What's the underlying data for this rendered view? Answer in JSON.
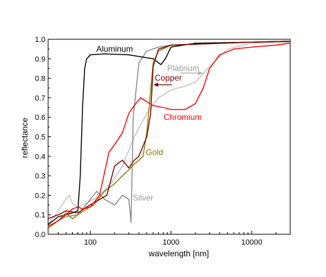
{
  "chart_data": {
    "type": "line",
    "xlabel": "wavelength [nm]",
    "ylabel": "reflectance",
    "xscale": "log",
    "xlim": [
      30,
      30000
    ],
    "ylim": [
      0,
      1.0
    ],
    "x_tick_labels": [
      "100",
      "1000",
      "10000"
    ],
    "y_tick_labels": [
      "0.0",
      "0.1",
      "0.2",
      "0.3",
      "0.4",
      "0.5",
      "0.6",
      "0.7",
      "0.8",
      "0.9",
      "1.0"
    ],
    "grid": false,
    "legend": "inline labels",
    "series": [
      {
        "name": "Platinum",
        "color": "#c0c0c0",
        "points": [
          [
            30,
            0.05
          ],
          [
            40,
            0.12
          ],
          [
            50,
            0.18
          ],
          [
            55,
            0.2
          ],
          [
            60,
            0.16
          ],
          [
            70,
            0.14
          ],
          [
            80,
            0.15
          ],
          [
            100,
            0.17
          ],
          [
            130,
            0.2
          ],
          [
            180,
            0.26
          ],
          [
            250,
            0.35
          ],
          [
            350,
            0.5
          ],
          [
            500,
            0.62
          ],
          [
            700,
            0.7
          ],
          [
            1000,
            0.74
          ],
          [
            1500,
            0.76
          ],
          [
            2000,
            0.78
          ],
          [
            3000,
            0.86
          ],
          [
            5000,
            0.95
          ],
          [
            10000,
            0.98
          ],
          [
            30000,
            0.985
          ]
        ]
      },
      {
        "name": "Silver",
        "color": "#888888",
        "points": [
          [
            30,
            0.04
          ],
          [
            40,
            0.07
          ],
          [
            50,
            0.09
          ],
          [
            70,
            0.1
          ],
          [
            100,
            0.18
          ],
          [
            120,
            0.22
          ],
          [
            150,
            0.18
          ],
          [
            200,
            0.15
          ],
          [
            250,
            0.2
          ],
          [
            300,
            0.18
          ],
          [
            320,
            0.06
          ],
          [
            340,
            0.6
          ],
          [
            400,
            0.88
          ],
          [
            500,
            0.94
          ],
          [
            700,
            0.96
          ],
          [
            1000,
            0.97
          ],
          [
            3000,
            0.98
          ],
          [
            10000,
            0.985
          ],
          [
            30000,
            0.99
          ]
        ]
      },
      {
        "name": "Aluminum",
        "color": "#000000",
        "points": [
          [
            30,
            0.05
          ],
          [
            40,
            0.09
          ],
          [
            50,
            0.1
          ],
          [
            60,
            0.11
          ],
          [
            70,
            0.12
          ],
          [
            75,
            0.3
          ],
          [
            80,
            0.65
          ],
          [
            85,
            0.85
          ],
          [
            90,
            0.9
          ],
          [
            100,
            0.92
          ],
          [
            150,
            0.925
          ],
          [
            300,
            0.92
          ],
          [
            600,
            0.9
          ],
          [
            750,
            0.87
          ],
          [
            850,
            0.9
          ],
          [
            1000,
            0.96
          ],
          [
            2000,
            0.98
          ],
          [
            10000,
            0.985
          ],
          [
            30000,
            0.99
          ]
        ]
      },
      {
        "name": "Gold",
        "color": "#808000",
        "points": [
          [
            30,
            0.03
          ],
          [
            40,
            0.07
          ],
          [
            50,
            0.11
          ],
          [
            60,
            0.08
          ],
          [
            70,
            0.1
          ],
          [
            90,
            0.13
          ],
          [
            110,
            0.15
          ],
          [
            150,
            0.22
          ],
          [
            200,
            0.26
          ],
          [
            250,
            0.3
          ],
          [
            300,
            0.33
          ],
          [
            350,
            0.36
          ],
          [
            400,
            0.38
          ],
          [
            450,
            0.4
          ],
          [
            500,
            0.52
          ],
          [
            600,
            0.88
          ],
          [
            700,
            0.94
          ],
          [
            1000,
            0.97
          ],
          [
            10000,
            0.985
          ],
          [
            30000,
            0.99
          ]
        ]
      },
      {
        "name": "Copper",
        "color": "#800000",
        "points": [
          [
            30,
            0.08
          ],
          [
            40,
            0.1
          ],
          [
            50,
            0.12
          ],
          [
            70,
            0.11
          ],
          [
            90,
            0.14
          ],
          [
            120,
            0.17
          ],
          [
            160,
            0.2
          ],
          [
            200,
            0.35
          ],
          [
            250,
            0.38
          ],
          [
            300,
            0.34
          ],
          [
            350,
            0.38
          ],
          [
            400,
            0.4
          ],
          [
            500,
            0.5
          ],
          [
            560,
            0.62
          ],
          [
            600,
            0.86
          ],
          [
            700,
            0.95
          ],
          [
            1000,
            0.97
          ],
          [
            10000,
            0.985
          ],
          [
            30000,
            0.99
          ]
        ]
      },
      {
        "name": "Chromium",
        "color": "#ff0000",
        "points": [
          [
            30,
            0.04
          ],
          [
            40,
            0.07
          ],
          [
            50,
            0.1
          ],
          [
            60,
            0.13
          ],
          [
            70,
            0.14
          ],
          [
            80,
            0.13
          ],
          [
            100,
            0.14
          ],
          [
            130,
            0.2
          ],
          [
            170,
            0.42
          ],
          [
            200,
            0.46
          ],
          [
            250,
            0.52
          ],
          [
            300,
            0.62
          ],
          [
            350,
            0.66
          ],
          [
            420,
            0.7
          ],
          [
            500,
            0.68
          ],
          [
            600,
            0.66
          ],
          [
            800,
            0.65
          ],
          [
            1000,
            0.64
          ],
          [
            1500,
            0.64
          ],
          [
            2000,
            0.67
          ],
          [
            2500,
            0.75
          ],
          [
            3000,
            0.85
          ],
          [
            4000,
            0.92
          ],
          [
            6000,
            0.95
          ],
          [
            10000,
            0.96
          ],
          [
            20000,
            0.97
          ],
          [
            30000,
            0.98
          ]
        ]
      }
    ]
  }
}
